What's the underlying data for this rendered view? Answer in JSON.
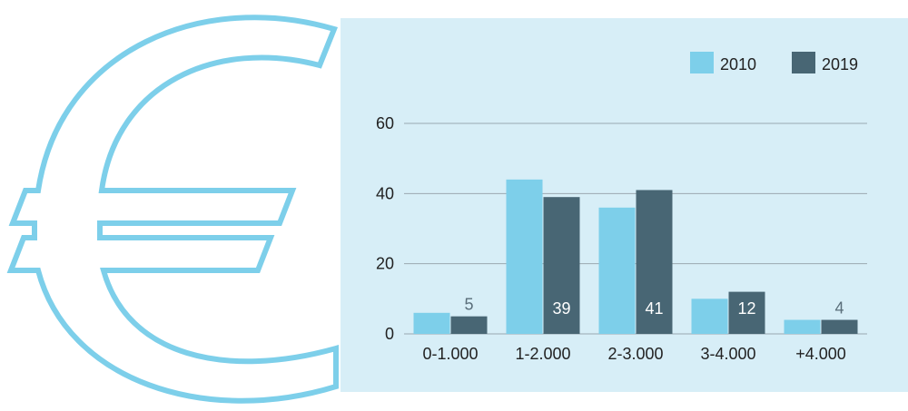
{
  "colors": {
    "background": "#d7eef7",
    "accent": "#7dcfea",
    "dark": "#486674",
    "grid": "#9aa8b0",
    "label_on_dark": "#ffffff",
    "label_outside": "#5a6e7a"
  },
  "decor": {
    "icon": "euro-sign-icon"
  },
  "chart_data": {
    "type": "bar",
    "title": "",
    "xlabel": "",
    "ylabel": "",
    "categories": [
      "0-1.000",
      "1-2.000",
      "2-3.000",
      "3-4.000",
      "+4.000"
    ],
    "series": [
      {
        "name": "2010",
        "values": [
          6,
          44,
          36,
          10,
          4
        ]
      },
      {
        "name": "2019",
        "values": [
          5,
          39,
          41,
          12,
          4
        ]
      }
    ],
    "data_labels": {
      "series": "2019",
      "values": [
        "5",
        "39",
        "41",
        "12",
        "4"
      ]
    },
    "yticks": [
      "0",
      "20",
      "40",
      "60"
    ],
    "ylim": [
      0,
      60
    ],
    "grid": true,
    "legend_position": "top-right"
  }
}
